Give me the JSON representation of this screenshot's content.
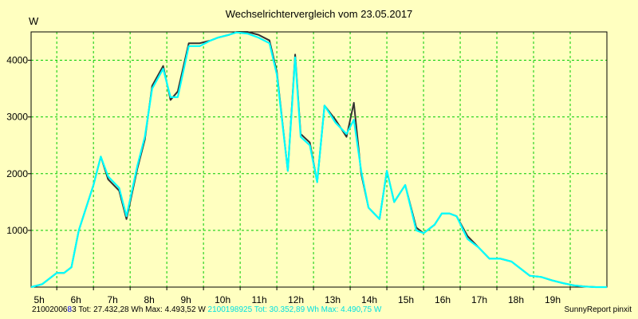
{
  "chart_data": {
    "type": "line",
    "title": "Wechselrichtervergleich vom 23.05.2017",
    "ylabel": "W",
    "ylim": [
      0,
      4500
    ],
    "yticks": [
      1000,
      2000,
      3000,
      4000
    ],
    "xlim": [
      4.3,
      20.0
    ],
    "xticks": [
      5,
      6,
      7,
      8,
      9,
      10,
      11,
      12,
      13,
      14,
      15,
      16,
      17,
      18,
      19
    ],
    "xtick_labels": [
      "5h",
      "6h",
      "7h",
      "8h",
      "9h",
      "10h",
      "11h",
      "12h",
      "13h",
      "14h",
      "15h",
      "16h",
      "17h",
      "18h",
      "19h"
    ],
    "grid": true,
    "series": [
      {
        "name": "2100200683",
        "color": "#333333",
        "x": [
          4.3,
          4.6,
          4.8,
          5.0,
          5.2,
          5.4,
          5.6,
          5.8,
          6.0,
          6.2,
          6.4,
          6.7,
          6.9,
          7.2,
          7.4,
          7.6,
          7.9,
          8.1,
          8.3,
          8.6,
          8.9,
          9.2,
          9.4,
          9.7,
          9.9,
          10.2,
          10.5,
          10.8,
          11.0,
          11.3,
          11.5,
          11.65,
          11.9,
          12.1,
          12.3,
          12.6,
          12.9,
          13.1,
          13.3,
          13.5,
          13.8,
          14.0,
          14.2,
          14.5,
          14.8,
          15.0,
          15.3,
          15.5,
          15.7,
          15.9,
          16.2,
          16.5,
          16.8,
          17.1,
          17.4,
          17.7,
          17.9,
          18.2,
          18.5,
          18.8,
          19.1,
          19.4,
          19.7,
          20.0
        ],
        "y": [
          0,
          50,
          150,
          250,
          250,
          350,
          1000,
          1400,
          1800,
          2300,
          1900,
          1700,
          1200,
          2100,
          2600,
          3550,
          3900,
          3300,
          3450,
          4300,
          4300,
          4350,
          4400,
          4450,
          4500,
          4500,
          4450,
          4350,
          3800,
          2050,
          4100,
          2700,
          2550,
          1850,
          3200,
          2950,
          2650,
          3250,
          2000,
          1400,
          1200,
          2050,
          1500,
          1800,
          1050,
          950,
          1100,
          1300,
          1300,
          1250,
          900,
          700,
          500,
          500,
          450,
          300,
          200,
          180,
          120,
          70,
          30,
          10,
          0,
          0
        ]
      },
      {
        "name": "2100198925",
        "color": "#00ffff",
        "x": [
          4.3,
          4.6,
          4.8,
          5.0,
          5.2,
          5.4,
          5.6,
          5.8,
          6.0,
          6.2,
          6.4,
          6.7,
          6.9,
          7.2,
          7.4,
          7.6,
          7.9,
          8.1,
          8.3,
          8.6,
          8.9,
          9.2,
          9.4,
          9.7,
          9.9,
          10.2,
          10.5,
          10.8,
          11.0,
          11.3,
          11.5,
          11.65,
          11.9,
          12.1,
          12.3,
          12.6,
          12.9,
          13.1,
          13.3,
          13.5,
          13.8,
          14.0,
          14.2,
          14.5,
          14.8,
          15.0,
          15.3,
          15.5,
          15.7,
          15.9,
          16.2,
          16.5,
          16.8,
          17.1,
          17.4,
          17.7,
          17.9,
          18.2,
          18.5,
          18.8,
          19.1,
          19.4,
          19.7,
          20.0
        ],
        "y": [
          0,
          50,
          150,
          250,
          250,
          350,
          1000,
          1400,
          1800,
          2300,
          1950,
          1750,
          1250,
          2150,
          2650,
          3500,
          3850,
          3350,
          3350,
          4250,
          4250,
          4350,
          4400,
          4450,
          4490,
          4470,
          4400,
          4300,
          3750,
          2050,
          4050,
          2650,
          2500,
          1850,
          3200,
          2900,
          2700,
          2950,
          2050,
          1400,
          1200,
          2050,
          1500,
          1800,
          1000,
          950,
          1100,
          1300,
          1300,
          1250,
          850,
          700,
          500,
          500,
          450,
          300,
          200,
          180,
          120,
          70,
          30,
          10,
          0,
          0
        ]
      }
    ]
  },
  "footer": {
    "left_prefix": "21002006",
    "left_highlight": "8",
    "left_text": "3 Tot: 27.432,28 Wh Max: 4.493,52 W ",
    "cyan_text": "2100198925 Tot: 30.352,89 Wh Max: 4.490,75 W",
    "right_text": "SunnyReport pinxit",
    "highlight_color": "#0000ff",
    "cyan_color": "#00e0e0"
  }
}
